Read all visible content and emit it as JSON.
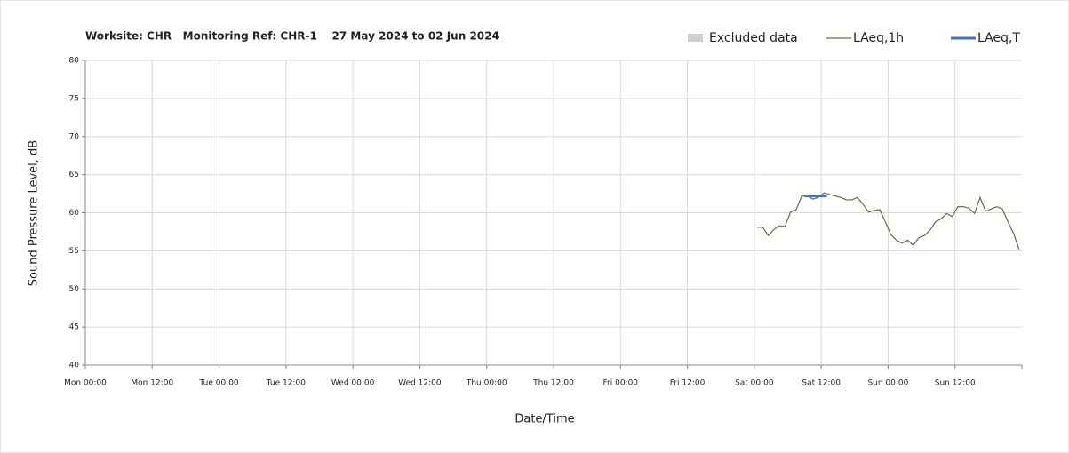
{
  "chart_data": {
    "type": "line",
    "title": "Worksite: CHR   Monitoring Ref: CHR-1    27 May 2024 to 02 Jun 2024",
    "xlabel": "Date/Time",
    "ylabel": "Sound Pressure Level, dB",
    "xlim": [
      0,
      168
    ],
    "xticks": [
      {
        "value": 0,
        "label": "Mon 00:00"
      },
      {
        "value": 12,
        "label": "Mon 12:00"
      },
      {
        "value": 24,
        "label": "Tue 00:00"
      },
      {
        "value": 36,
        "label": "Tue 12:00"
      },
      {
        "value": 48,
        "label": "Wed 00:00"
      },
      {
        "value": 60,
        "label": "Wed 12:00"
      },
      {
        "value": 72,
        "label": "Thu 00:00"
      },
      {
        "value": 84,
        "label": "Thu 12:00"
      },
      {
        "value": 96,
        "label": "Fri 00:00"
      },
      {
        "value": 108,
        "label": "Fri 12:00"
      },
      {
        "value": 120,
        "label": "Sat 00:00"
      },
      {
        "value": 132,
        "label": "Sat 12:00"
      },
      {
        "value": 144,
        "label": "Sun 00:00"
      },
      {
        "value": 156,
        "label": "Sun 12:00"
      }
    ],
    "ylim": [
      40,
      80
    ],
    "yticks": [
      40,
      45,
      50,
      55,
      60,
      65,
      70,
      75,
      80
    ],
    "grid": true,
    "legend": "top-right",
    "series": [
      {
        "name": "Excluded data",
        "color": "#d0d0d0",
        "kind": "area",
        "x": [],
        "values": []
      },
      {
        "name": "LAeq,1h",
        "color": "#5a7340",
        "kind": "line",
        "x": [
          120.5,
          121.5,
          122.5,
          123.5,
          124.5,
          125.5,
          126.5,
          127.5,
          128.5,
          129.5,
          130.5,
          131.5,
          132.5,
          133.5,
          134.5,
          135.5,
          136.5,
          137.5,
          138.5,
          139.5,
          140.5,
          141.5,
          142.5,
          143.5,
          144.5,
          145.5,
          146.5,
          147.5,
          148.5,
          149.5,
          150.5,
          151.5,
          152.5,
          153.5,
          154.5,
          155.5,
          156.5,
          157.5,
          158.5,
          159.5,
          160.5,
          161.5,
          162.5,
          163.5,
          164.5,
          165.5,
          166.5,
          167.5
        ],
        "values": [
          58.1,
          58.1,
          57.0,
          57.8,
          58.3,
          58.2,
          60.1,
          60.4,
          62.2,
          62.2,
          61.8,
          62.0,
          62.6,
          62.4,
          62.2,
          62.0,
          61.7,
          61.7,
          62.0,
          61.1,
          60.1,
          60.3,
          60.4,
          58.8,
          57.1,
          56.4,
          56.0,
          56.4,
          55.7,
          56.7,
          57.0,
          57.7,
          58.8,
          59.2,
          59.9,
          59.5,
          60.8,
          60.8,
          60.6,
          59.9,
          62.0,
          60.2,
          60.5,
          60.8,
          60.5,
          58.8,
          57.3,
          55.2
        ]
      },
      {
        "name": "LAeq,T",
        "color": "#4472c4",
        "kind": "line",
        "x": [
          129,
          133
        ],
        "values": [
          62.2,
          62.2
        ]
      }
    ]
  }
}
